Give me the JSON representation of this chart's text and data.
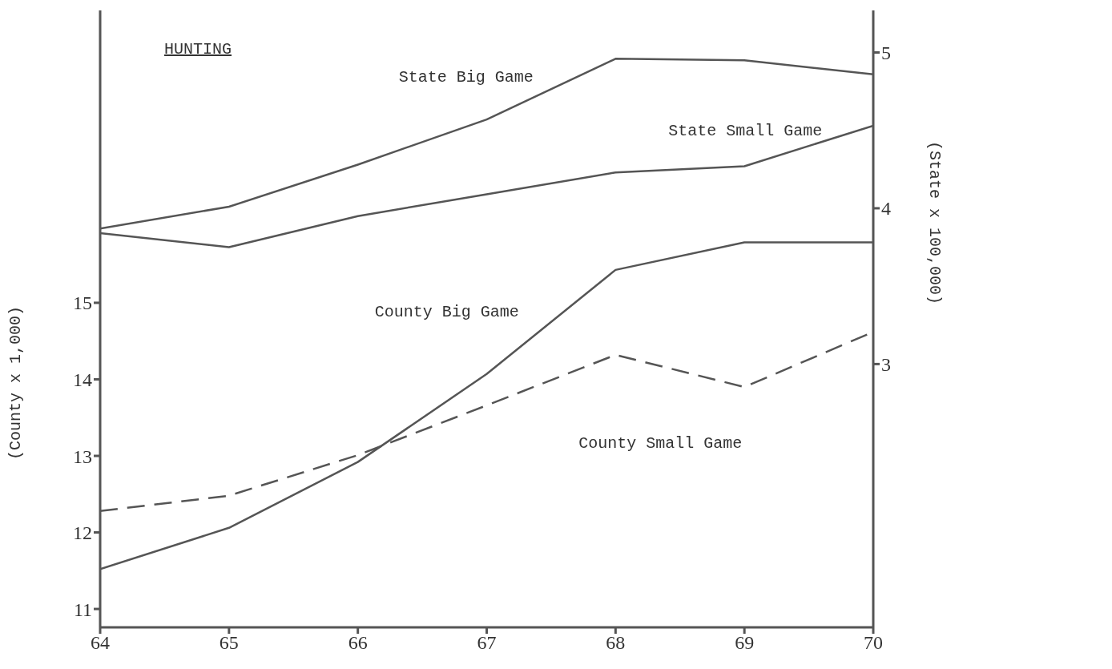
{
  "chart_data": {
    "type": "line",
    "title": "HUNTING",
    "ylabel": "(County x 1,000)",
    "y2label": "(State x 100,000)",
    "x": [
      64,
      65,
      66,
      67,
      68,
      69,
      70
    ],
    "xlim": [
      64,
      70
    ],
    "xticks": [
      64,
      65,
      66,
      67,
      68,
      69,
      70
    ],
    "ylim": [
      10.76,
      18.82
    ],
    "yticks": [
      11,
      12,
      13,
      14,
      15
    ],
    "y2lim": [
      1.31,
      5.27
    ],
    "y2ticks": [
      3,
      4,
      5
    ],
    "marker": "none",
    "series": [
      {
        "name": "State Big Game",
        "color": "#555555",
        "axis": "y2",
        "line_style": "solid",
        "values": [
          3.87,
          4.01,
          4.28,
          4.57,
          4.96,
          4.95,
          4.86
        ]
      },
      {
        "name": "State Small Game",
        "color": "#555555",
        "axis": "y2",
        "line_style": "solid",
        "values": [
          3.84,
          3.75,
          3.95,
          4.09,
          4.23,
          4.27,
          4.53
        ]
      },
      {
        "name": "County Big Game",
        "color": "#555555",
        "line_style": "solid",
        "values": [
          11.52,
          12.06,
          12.92,
          14.07,
          15.43,
          15.79,
          15.79
        ]
      },
      {
        "name": "County Small Game",
        "color": "#555555",
        "line_style": "dashed",
        "values": [
          12.28,
          12.48,
          13.01,
          13.66,
          14.32,
          13.9,
          14.62
        ]
      }
    ]
  }
}
